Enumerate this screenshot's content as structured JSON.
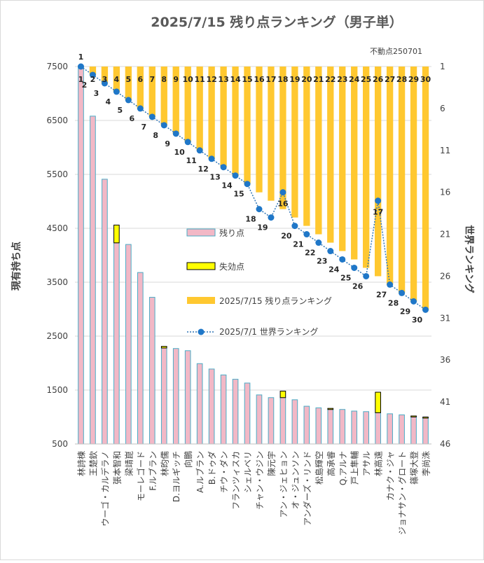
{
  "chart_data": {
    "type": "bar",
    "title": "2025/7/15 残り点ランキング（男子単）",
    "note": "不動点250701",
    "ylabel_left": "現有持ち点",
    "ylabel_right": "世界ランキング",
    "y_left": {
      "min": 500,
      "max": 7500,
      "ticks": [
        7500,
        6500,
        5500,
        4500,
        3500,
        2500,
        1500,
        500
      ]
    },
    "y_right": {
      "min": 1,
      "max": 46,
      "ticks": [
        1,
        6,
        11,
        16,
        21,
        26,
        31,
        36,
        41,
        46
      ],
      "inverted": true
    },
    "legend": [
      {
        "key": "remaining",
        "label": "残り点"
      },
      {
        "key": "expired",
        "label": "失効点"
      },
      {
        "key": "rank_0715",
        "label": "2025/7/15 残り点ランキング"
      },
      {
        "key": "rank_0701",
        "label": "2025/7/1 世界ランキング"
      }
    ],
    "colors": {
      "remaining_fill": "#f2b8c6",
      "remaining_edge": "#4bacc6",
      "expired_fill": "#ffff00",
      "expired_edge": "#000000",
      "rank_bar": "#ffc830",
      "rank_line": "#2e75b6",
      "rank_marker": "#1f77c8"
    },
    "categories": [
      "林詩棟",
      "王楚欽",
      "ウーゴ・カルデラノ",
      "張本智和",
      "梁靖崑",
      "モーレゴード",
      "F.ルブラン",
      "林昀儒",
      "D.ヨルギッチ",
      "向鵬",
      "A.ルブラン",
      "B.ドゥダ",
      "チウ・ダン",
      "フランツィスカ",
      "シェルベリ",
      "チャン・ウジン",
      "陳元宇",
      "アン・ジェヒョン",
      "オ・ジュンソン",
      "アンダーズ・リンド",
      "松島輝空",
      "高承睿",
      "Q.アルナ",
      "戸上隼輔",
      "アサル",
      "林高遠",
      "カナク・ジャ",
      "ジョナサン・グロート",
      "篠塚大登",
      "李尚洙"
    ],
    "series": [
      {
        "name": "残り点",
        "values": [
          7500,
          6580,
          5410,
          4230,
          4200,
          3680,
          3220,
          2280,
          2270,
          2230,
          1990,
          1890,
          1780,
          1700,
          1630,
          1410,
          1360,
          1360,
          1320,
          1200,
          1170,
          1140,
          1140,
          1110,
          1100,
          1080,
          1060,
          1040,
          1000,
          980
        ]
      },
      {
        "name": "失効点",
        "values": [
          0,
          0,
          0,
          330,
          0,
          0,
          0,
          30,
          0,
          0,
          0,
          0,
          0,
          0,
          0,
          0,
          0,
          120,
          0,
          0,
          0,
          20,
          0,
          0,
          0,
          380,
          0,
          0,
          20,
          20
        ]
      },
      {
        "name": "2025/7/15 残り点ランキング",
        "values": [
          1,
          2,
          3,
          4,
          5,
          6,
          7,
          8,
          9,
          10,
          11,
          12,
          13,
          14,
          15,
          16,
          17,
          18,
          19,
          20,
          21,
          22,
          23,
          24,
          25,
          26,
          27,
          28,
          29,
          30
        ]
      },
      {
        "name": "2025/7/1 世界ランキング",
        "values": [
          1,
          2,
          3,
          4,
          5,
          6,
          7,
          8,
          9,
          10,
          11,
          12,
          13,
          14,
          15,
          18,
          19,
          16,
          20,
          21,
          22,
          23,
          24,
          25,
          26,
          17,
          27,
          28,
          29,
          30
        ]
      }
    ]
  }
}
